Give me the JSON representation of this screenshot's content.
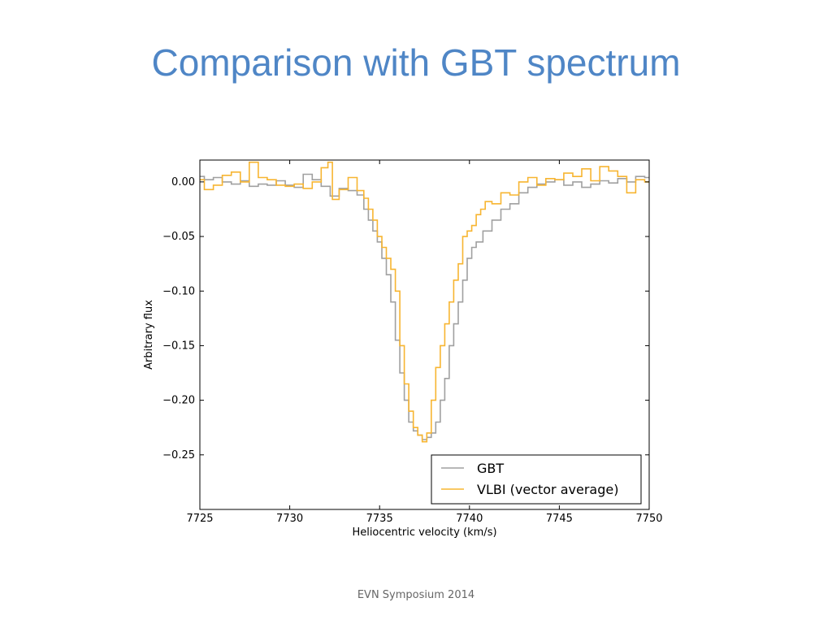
{
  "slide": {
    "title": "Comparison with GBT spectrum",
    "footer": "EVN Symposium 2014"
  },
  "chart_data": {
    "type": "line",
    "step": true,
    "xlabel": "Heliocentric velocity (km/s)",
    "ylabel": "Arbitrary flux",
    "xlim": [
      7725,
      7750
    ],
    "ylim": [
      -0.3,
      0.02
    ],
    "xticks": [
      7725,
      7730,
      7735,
      7740,
      7745,
      7750
    ],
    "yticks": [
      0.0,
      -0.05,
      -0.1,
      -0.15,
      -0.2,
      -0.25
    ],
    "ytick_labels": [
      "0.00",
      "−0.05",
      "−0.10",
      "−0.15",
      "−0.20",
      "−0.25"
    ],
    "grid": false,
    "legend_position": "lower-right",
    "series": [
      {
        "name": "GBT",
        "color": "#a0a0a0",
        "x": [
          7725.0,
          7725.5,
          7726.0,
          7726.5,
          7727.0,
          7727.5,
          7728.0,
          7728.5,
          7729.0,
          7729.5,
          7730.0,
          7730.5,
          7731.0,
          7731.5,
          7732.0,
          7732.5,
          7733.0,
          7733.5,
          7734.0,
          7734.25,
          7734.5,
          7734.75,
          7735.0,
          7735.25,
          7735.5,
          7735.75,
          7736.0,
          7736.25,
          7736.5,
          7736.75,
          7737.0,
          7737.25,
          7737.5,
          7737.75,
          7738.0,
          7738.25,
          7738.5,
          7738.75,
          7739.0,
          7739.25,
          7739.5,
          7739.75,
          7740.0,
          7740.25,
          7740.5,
          7741.0,
          7741.5,
          7742.0,
          7742.5,
          7743.0,
          7743.5,
          7744.0,
          7744.5,
          7745.0,
          7745.5,
          7746.0,
          7746.5,
          7747.0,
          7747.5,
          7748.0,
          7748.5,
          7749.0,
          7749.5,
          7750.0
        ],
        "y": [
          0.005,
          0.002,
          0.004,
          0.0,
          -0.002,
          0.001,
          -0.004,
          -0.002,
          -0.003,
          0.001,
          -0.003,
          -0.005,
          0.007,
          0.002,
          -0.004,
          -0.013,
          -0.006,
          -0.008,
          -0.012,
          -0.025,
          -0.035,
          -0.045,
          -0.055,
          -0.07,
          -0.085,
          -0.11,
          -0.145,
          -0.175,
          -0.2,
          -0.22,
          -0.228,
          -0.232,
          -0.236,
          -0.234,
          -0.23,
          -0.22,
          -0.2,
          -0.18,
          -0.15,
          -0.13,
          -0.11,
          -0.09,
          -0.07,
          -0.06,
          -0.055,
          -0.045,
          -0.035,
          -0.025,
          -0.02,
          -0.01,
          -0.005,
          -0.002,
          0.0,
          0.002,
          -0.003,
          0.0,
          -0.005,
          -0.002,
          0.001,
          -0.001,
          0.003,
          0.0,
          0.005,
          0.004
        ]
      },
      {
        "name": "VLBI (vector average)",
        "color": "#f7b531",
        "x": [
          7725.0,
          7725.5,
          7726.0,
          7726.5,
          7727.0,
          7727.5,
          7728.0,
          7728.5,
          7729.0,
          7729.5,
          7730.0,
          7730.5,
          7731.0,
          7731.5,
          7732.0,
          7732.25,
          7732.5,
          7733.0,
          7733.5,
          7734.0,
          7734.25,
          7734.5,
          7734.75,
          7735.0,
          7735.25,
          7735.5,
          7735.75,
          7736.0,
          7736.25,
          7736.5,
          7736.75,
          7737.0,
          7737.25,
          7737.5,
          7737.75,
          7738.0,
          7738.25,
          7738.5,
          7738.75,
          7739.0,
          7739.25,
          7739.5,
          7739.75,
          7740.0,
          7740.25,
          7740.5,
          7740.75,
          7741.0,
          7741.5,
          7742.0,
          7742.5,
          7743.0,
          7743.5,
          7744.0,
          7744.5,
          7745.0,
          7745.5,
          7746.0,
          7746.5,
          7747.0,
          7747.5,
          7748.0,
          7748.5,
          7749.0,
          7749.5,
          7750.0
        ],
        "y": [
          0.002,
          -0.007,
          -0.003,
          0.006,
          0.009,
          0.0,
          0.018,
          0.004,
          0.002,
          -0.003,
          -0.004,
          -0.002,
          -0.006,
          0.0,
          0.013,
          0.018,
          -0.016,
          -0.007,
          0.004,
          -0.008,
          -0.015,
          -0.025,
          -0.035,
          -0.05,
          -0.06,
          -0.07,
          -0.08,
          -0.1,
          -0.15,
          -0.185,
          -0.21,
          -0.225,
          -0.232,
          -0.238,
          -0.23,
          -0.2,
          -0.17,
          -0.15,
          -0.13,
          -0.11,
          -0.09,
          -0.075,
          -0.05,
          -0.045,
          -0.04,
          -0.03,
          -0.025,
          -0.018,
          -0.02,
          -0.01,
          -0.012,
          0.0,
          0.004,
          -0.003,
          0.003,
          0.002,
          0.008,
          0.005,
          0.012,
          0.001,
          0.014,
          0.01,
          0.005,
          -0.01,
          0.002,
          0.0
        ]
      }
    ]
  }
}
